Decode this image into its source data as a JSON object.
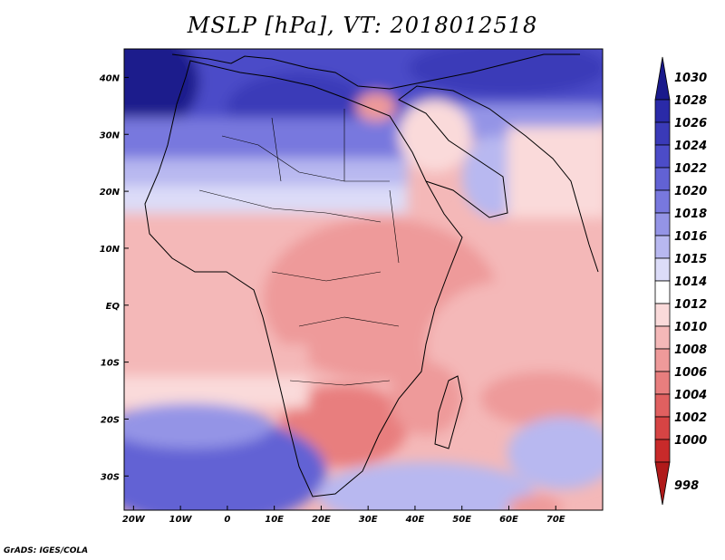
{
  "title": "MSLP [hPa], VT: 2018012518",
  "footer": "GrADS: IGES/COLA",
  "map": {
    "lon_range": [
      -22,
      80
    ],
    "lat_range": [
      -36,
      45
    ],
    "lon_ticks": [
      "20W",
      "10W",
      "0",
      "10E",
      "20E",
      "30E",
      "40E",
      "50E",
      "60E",
      "70E"
    ],
    "lon_tick_values": [
      -20,
      -10,
      0,
      10,
      20,
      30,
      40,
      50,
      60,
      70
    ],
    "lat_ticks": [
      "40N",
      "30N",
      "20N",
      "10N",
      "EQ",
      "10S",
      "20S",
      "30S"
    ],
    "lat_tick_values": [
      40,
      30,
      20,
      10,
      0,
      -10,
      -20,
      -30
    ]
  },
  "colorbar": {
    "labels": [
      "1030",
      "1028",
      "1026",
      "1024",
      "1022",
      "1020",
      "1018",
      "1016",
      "1015",
      "1014",
      "1012",
      "1010",
      "1008",
      "1006",
      "1004",
      "1002",
      "1000",
      "998"
    ],
    "colors": [
      "#1a1a8c",
      "#2a2aa8",
      "#3a3ab8",
      "#4c4cc8",
      "#6262d4",
      "#7878de",
      "#9494e6",
      "#b8b8f0",
      "#dcdcf8",
      "#ffffff",
      "#fadada",
      "#f4b8b8",
      "#ee9a9a",
      "#e87e7e",
      "#e06060",
      "#d64444",
      "#c82a2a",
      "#b01a1a"
    ]
  },
  "colors": {
    "ocean_south": "#f6c4c4",
    "ocean_north": "#5a5ad0"
  }
}
